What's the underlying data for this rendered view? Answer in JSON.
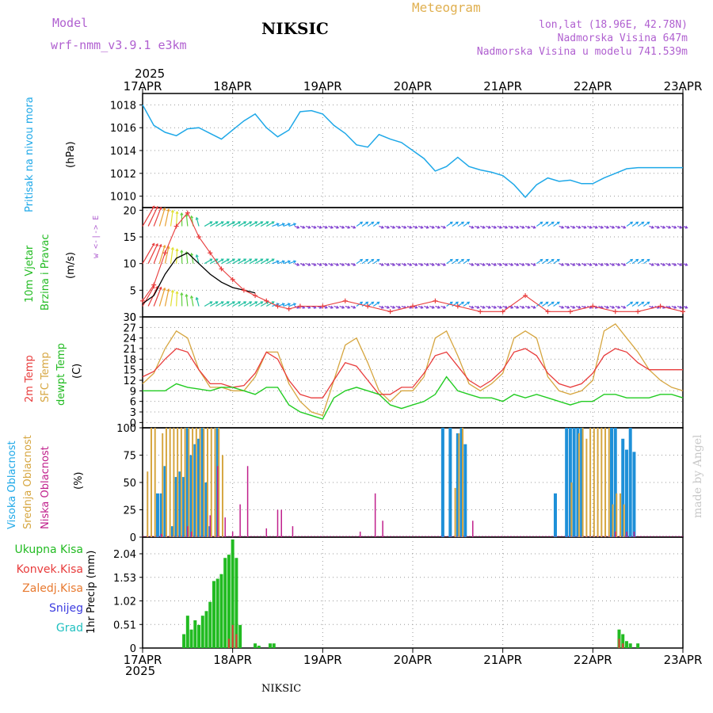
{
  "header": {
    "model_label": "Model",
    "model_name": "wrf-nmm_v3.9.1 e3km",
    "station": "NIKSIC",
    "title": "Meteogram",
    "lonlat": "lon,lat (18.96E, 42.78N)",
    "elevation": "Nadmorska Visina 647m",
    "model_elevation": "Nadmorska Visina u modelu 741.539m"
  },
  "footer": {
    "station": "NIKSIC",
    "credit": "made by Angel"
  },
  "time_axis": {
    "year": "2025",
    "ticks": [
      "17APR",
      "18APR",
      "19APR",
      "20APR",
      "21APR",
      "22APR",
      "23APR"
    ]
  },
  "panels": {
    "pressure": {
      "label": "Pritisak na nivou mora",
      "unit": "(hPa)"
    },
    "wind": {
      "label1": "10m Vjetar",
      "label2": "Brzina i Pravac",
      "unit": "(m/s)",
      "compass": "w <-|-> E"
    },
    "temp": {
      "label1": "2m Temp",
      "label2": "SFC Temp",
      "label3": "dewpt Temp",
      "unit": "(C)"
    },
    "cloud": {
      "label1": "Visoka Oblacnost",
      "label2": "Srednja Oblacnost",
      "label3": "Niska Oblacnost",
      "unit": "(%)"
    },
    "precip": {
      "unit": "1hr Precip (mm)",
      "legend": [
        "Ukupna Kisa",
        "Konvek.Kisa",
        "Zaledj.Kisa",
        "Snijeg",
        "Grad"
      ]
    }
  },
  "colors": {
    "pressure": "#1ea8e8",
    "temp2m": "#e83c3c",
    "sfc": "#d6a640",
    "dew": "#22cc22",
    "black": "#000000",
    "gust": "#e83c3c",
    "high": "#1e90d8",
    "mid": "#d6a640",
    "low": "#c0208c",
    "precip": "#22bb22",
    "conv": "#e83c3c",
    "frz": "#e87a30",
    "snow": "#3c3ce0",
    "hail": "#20c0c0",
    "purple": "#b060d0",
    "title": "#e0b050",
    "credit": "#c8c8c8"
  },
  "chart_data": [
    {
      "type": "line",
      "title": "Pritisak na nivou mora",
      "ylabel": "hPa",
      "ylim": [
        1009,
        1019
      ],
      "yticks": [
        1010,
        1012,
        1014,
        1016,
        1018
      ],
      "xlim": [
        0,
        144
      ],
      "series": [
        {
          "name": "MSLP",
          "x": [
            0,
            3,
            6,
            9,
            12,
            15,
            18,
            21,
            24,
            27,
            30,
            33,
            36,
            39,
            42,
            45,
            48,
            51,
            54,
            57,
            60,
            63,
            66,
            69,
            72,
            75,
            78,
            81,
            84,
            87,
            90,
            93,
            96,
            99,
            102,
            105,
            108,
            111,
            114,
            117,
            120,
            123,
            126,
            129,
            132,
            135,
            138,
            141,
            144
          ],
          "values": [
            1018.0,
            1016.2,
            1015.6,
            1015.3,
            1015.9,
            1016.0,
            1015.5,
            1015.0,
            1015.8,
            1016.6,
            1017.2,
            1016.0,
            1015.2,
            1015.8,
            1017.4,
            1017.5,
            1017.2,
            1016.2,
            1015.5,
            1014.5,
            1014.3,
            1015.4,
            1015.0,
            1014.7,
            1014.0,
            1013.3,
            1012.2,
            1012.6,
            1013.4,
            1012.6,
            1012.3,
            1012.1,
            1011.8,
            1011.0,
            1009.9,
            1011.0,
            1011.6,
            1011.3,
            1011.4,
            1011.1,
            1011.1,
            1011.6,
            1012.0,
            1012.4,
            1012.5,
            1012.5,
            1012.5,
            1012.5,
            1012.5
          ]
        }
      ]
    },
    {
      "type": "line",
      "title": "10m Vjetar Brzina i Pravac",
      "ylabel": "m/s",
      "ylim": [
        0,
        20.5
      ],
      "yticks": [
        0,
        5,
        10,
        15,
        20
      ],
      "xlim": [
        0,
        144
      ],
      "series": [
        {
          "name": "wind speed",
          "x": [
            0,
            3,
            6,
            9,
            12,
            15,
            18,
            21,
            24,
            27,
            30
          ],
          "values": [
            2.5,
            4,
            8,
            11,
            12,
            10,
            8,
            6.5,
            5.5,
            5,
            4.5
          ]
        },
        {
          "name": "gust",
          "x": [
            0,
            3,
            6,
            9,
            12,
            15,
            18,
            21,
            24,
            27,
            30,
            33,
            36,
            39,
            42,
            48,
            54,
            60,
            66,
            72,
            78,
            84,
            90,
            96,
            102,
            108,
            114,
            120,
            126,
            132,
            138,
            144
          ],
          "values": [
            3,
            6,
            12,
            17,
            19.5,
            15,
            12,
            9,
            7,
            5,
            4,
            3,
            2,
            1.5,
            2,
            2,
            3,
            2,
            1,
            2,
            3,
            2,
            1,
            1,
            4,
            1,
            1,
            2,
            1,
            1,
            2,
            1
          ]
        }
      ],
      "arrow_rows": [
        2,
        10,
        17
      ]
    },
    {
      "type": "line",
      "title": "Temperature",
      "ylabel": "C",
      "ylim": [
        -1.5,
        30
      ],
      "yticks": [
        0,
        3,
        6,
        9,
        12,
        15,
        18,
        21,
        24,
        27,
        30
      ],
      "xlim": [
        0,
        144
      ],
      "series": [
        {
          "name": "2m Temp",
          "x": [
            0,
            3,
            6,
            9,
            12,
            15,
            18,
            21,
            24,
            27,
            30,
            33,
            36,
            39,
            42,
            45,
            48,
            51,
            54,
            57,
            60,
            63,
            66,
            69,
            72,
            75,
            78,
            81,
            84,
            87,
            90,
            93,
            96,
            99,
            102,
            105,
            108,
            111,
            114,
            117,
            120,
            123,
            126,
            129,
            132,
            135,
            138,
            141,
            144
          ],
          "values": [
            13,
            14.5,
            18,
            21,
            20,
            15,
            11,
            11,
            10,
            10.5,
            14,
            20,
            18,
            12,
            8,
            7,
            7,
            12,
            17,
            16,
            12,
            8,
            8,
            10,
            10,
            14,
            19,
            20,
            16,
            12,
            10,
            12,
            15,
            20,
            21,
            19,
            14,
            11,
            10,
            11,
            14,
            19,
            21,
            20,
            17,
            15,
            15,
            15,
            15
          ]
        },
        {
          "name": "SFC Temp",
          "x": [
            0,
            3,
            6,
            9,
            12,
            15,
            18,
            21,
            24,
            27,
            30,
            33,
            36,
            39,
            42,
            45,
            48,
            51,
            54,
            57,
            60,
            63,
            66,
            69,
            72,
            75,
            78,
            81,
            84,
            87,
            90,
            93,
            96,
            99,
            102,
            105,
            108,
            111,
            114,
            117,
            120,
            123,
            126,
            129,
            132,
            135,
            138,
            141,
            144
          ],
          "values": [
            11,
            14,
            21,
            26,
            24,
            15,
            10,
            10,
            9,
            9,
            13,
            20,
            20,
            11,
            6,
            3,
            2,
            12,
            22,
            24,
            17,
            9,
            6,
            9,
            9,
            13,
            24,
            26,
            19,
            11,
            9,
            11,
            14,
            24,
            26,
            24,
            13,
            9,
            8,
            9,
            12,
            26,
            28,
            24,
            20,
            15,
            12,
            10,
            9
          ]
        },
        {
          "name": "dewpt Temp",
          "x": [
            0,
            3,
            6,
            9,
            12,
            15,
            18,
            21,
            24,
            27,
            30,
            33,
            36,
            39,
            42,
            45,
            48,
            51,
            54,
            57,
            60,
            63,
            66,
            69,
            72,
            75,
            78,
            81,
            84,
            87,
            90,
            93,
            96,
            99,
            102,
            105,
            108,
            111,
            114,
            117,
            120,
            123,
            126,
            129,
            132,
            135,
            138,
            141,
            144
          ],
          "values": [
            9,
            9,
            9,
            11,
            10,
            9.5,
            9,
            10,
            10,
            9,
            8,
            10,
            10,
            5,
            3,
            2,
            1,
            7,
            9,
            10,
            9,
            8,
            5,
            4,
            5,
            6,
            8,
            13,
            9,
            8,
            7,
            7,
            6,
            8,
            7,
            8,
            7,
            6,
            5,
            6,
            6,
            8,
            8,
            7,
            7,
            7,
            8,
            8,
            7
          ]
        }
      ]
    },
    {
      "type": "bar",
      "title": "Oblacnost",
      "ylabel": "%",
      "ylim": [
        0,
        100
      ],
      "yticks": [
        0,
        25,
        50,
        75,
        100
      ],
      "xlim": [
        0,
        144
      ],
      "series": [
        {
          "name": "Visoka Oblacnost",
          "x": [
            4,
            5,
            6,
            8,
            9,
            10,
            11,
            12,
            13,
            14,
            15,
            16,
            17,
            18,
            20,
            80,
            82,
            84,
            85,
            86,
            110,
            113,
            114,
            115,
            116,
            117,
            125,
            126,
            128,
            129,
            130,
            131
          ],
          "values": [
            40,
            40,
            65,
            10,
            55,
            60,
            55,
            100,
            75,
            85,
            90,
            100,
            50,
            10,
            100,
            100,
            100,
            95,
            100,
            85,
            40,
            100,
            100,
            100,
            100,
            100,
            100,
            100,
            90,
            80,
            100,
            78
          ]
        },
        {
          "name": "Srednja Oblacnost",
          "x": [
            1,
            2,
            3,
            5,
            6,
            7,
            8,
            9,
            10,
            11,
            12,
            13,
            14,
            15,
            16,
            17,
            18,
            19,
            20,
            21,
            83,
            84,
            85,
            114,
            116,
            117,
            118,
            119,
            120,
            121,
            122,
            123,
            124,
            125,
            126,
            127,
            128
          ],
          "values": [
            60,
            100,
            100,
            95,
            100,
            100,
            100,
            100,
            100,
            100,
            100,
            100,
            100,
            100,
            100,
            100,
            100,
            100,
            100,
            75,
            45,
            95,
            100,
            50,
            95,
            100,
            90,
            100,
            100,
            100,
            100,
            100,
            100,
            30,
            40,
            40,
            30
          ]
        },
        {
          "name": "Niska Oblacnost",
          "x": [
            5,
            12,
            13,
            18,
            20,
            22,
            24,
            26,
            28,
            33,
            36,
            37,
            40,
            58,
            62,
            64,
            88,
            126,
            129,
            131
          ],
          "values": [
            3,
            10,
            5,
            20,
            65,
            18,
            5,
            30,
            65,
            8,
            25,
            25,
            10,
            5,
            40,
            15,
            15,
            5,
            5,
            5
          ]
        }
      ]
    },
    {
      "type": "bar",
      "title": "1hr Precip",
      "ylabel": "mm",
      "ylim": [
        0,
        2.4
      ],
      "yticks": [
        0,
        0.51,
        1.02,
        1.53,
        2.04
      ],
      "xlim": [
        0,
        144
      ],
      "series": [
        {
          "name": "Ukupna Kisa",
          "x": [
            11,
            12,
            13,
            14,
            15,
            16,
            17,
            18,
            19,
            20,
            21,
            22,
            23,
            24,
            25,
            26,
            30,
            31,
            34,
            35,
            127,
            128,
            129,
            130,
            132
          ],
          "values": [
            0.3,
            0.7,
            0.4,
            0.6,
            0.5,
            0.7,
            0.8,
            1.0,
            1.45,
            1.5,
            1.6,
            1.95,
            2.02,
            2.35,
            1.95,
            0.5,
            0.1,
            0.05,
            0.1,
            0.1,
            0.4,
            0.3,
            0.15,
            0.1,
            0.1
          ]
        },
        {
          "name": "Konvek.Kisa",
          "x": [
            23,
            24,
            25,
            127,
            128
          ],
          "values": [
            0.2,
            0.5,
            0.3,
            0.2,
            0.1
          ]
        }
      ]
    }
  ]
}
